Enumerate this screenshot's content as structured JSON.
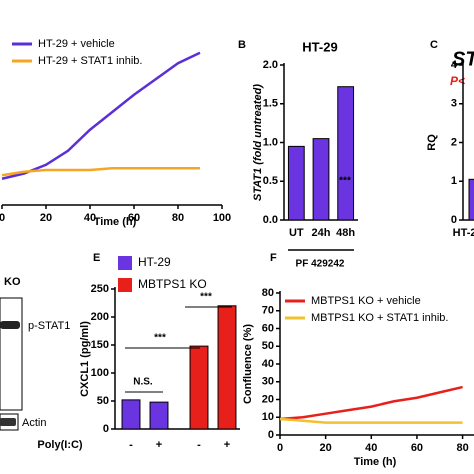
{
  "chart_data": [
    {
      "type": "line",
      "xlabel": "Time (h)",
      "x": [
        0,
        10,
        20,
        30,
        40,
        50,
        60,
        70,
        80,
        90
      ],
      "series": [
        {
          "name": "HT-29 + vehicle",
          "color": "#5b2fd6",
          "values": [
            15,
            18,
            23,
            31,
            43,
            53,
            63,
            72,
            81,
            87
          ]
        },
        {
          "name": "HT-29 + STAT1 inhib.",
          "color": "#f5a623",
          "values": [
            17,
            19,
            20,
            20,
            20,
            21,
            21,
            21,
            21,
            21
          ]
        }
      ],
      "xlim": [
        0,
        100
      ],
      "xticks": [
        0,
        20,
        40,
        60,
        80,
        100
      ],
      "ylim": [
        0,
        100
      ]
    },
    {
      "type": "bar",
      "panel": "B",
      "title": "HT-29",
      "ylabel": "STAT1 (fold untreated)",
      "group_label": "PF 429242",
      "categories": [
        "UT",
        "24h",
        "48h"
      ],
      "series": [
        {
          "name": "HT-29",
          "color": "#6a34e0",
          "values": [
            0.95,
            1.05,
            1.72
          ]
        }
      ],
      "annotations": [
        "***"
      ],
      "ylim": [
        0,
        2
      ],
      "yticks": [
        {
          "value": 0,
          "label": "0.0"
        },
        {
          "value": 0.5,
          "label": "0.5"
        },
        {
          "value": 1,
          "label": "1.0"
        },
        {
          "value": 1.5,
          "label": "1.5"
        },
        {
          "value": 2,
          "label": "2.0"
        }
      ]
    },
    {
      "type": "bar",
      "panel": "C",
      "title": "ST",
      "subtitle": "P<",
      "ylabel": "RQ",
      "categories": [
        "HT-2"
      ],
      "series": [
        {
          "name": "HT-29",
          "color": "#6a34e0",
          "values": [
            1.05
          ]
        }
      ],
      "ylim": [
        0,
        4
      ],
      "yticks": [
        0,
        1,
        2,
        3,
        4
      ]
    },
    {
      "type": "bar",
      "panel": "E",
      "ylabel": "CXCL1 (pg/ml)",
      "xlabel": "Poly(I:C)",
      "categories": [
        "-",
        "+",
        "-",
        "+"
      ],
      "series": [
        {
          "name": "HT-29",
          "color": "#6a34e0",
          "values": [
            52,
            48,
            null,
            null
          ]
        },
        {
          "name": "MBTPS1 KO",
          "color": "#e8201c",
          "values": [
            null,
            null,
            148,
            220
          ]
        }
      ],
      "annotations": [
        "N.S.",
        "***",
        "***"
      ],
      "ylim": [
        0,
        250
      ],
      "yticks": [
        0,
        50,
        100,
        150,
        200,
        250
      ],
      "legend": "top-left"
    },
    {
      "type": "line",
      "panel": "F",
      "xlabel": "Time (h)",
      "ylabel": "Confluence (%)",
      "x": [
        0,
        10,
        20,
        30,
        40,
        50,
        60,
        70,
        80
      ],
      "series": [
        {
          "name": "MBTPS1 KO + vehicle",
          "color": "#e8201c",
          "values": [
            9,
            10,
            12,
            14,
            16,
            19,
            21,
            24,
            27
          ]
        },
        {
          "name": "MBTPS1 KO + STAT1 inhib.",
          "color": "#f2c12e",
          "values": [
            9,
            8,
            7,
            7,
            7,
            7,
            7,
            7,
            7
          ]
        }
      ],
      "xlim": [
        0,
        85
      ],
      "xticks": [
        0,
        20,
        40,
        60,
        80
      ],
      "ylim": [
        0,
        80
      ],
      "yticks": [
        0,
        10,
        20,
        30,
        40,
        50,
        60,
        70,
        80
      ]
    }
  ],
  "blot": {
    "labels": [
      "KO",
      "p-STAT1",
      "Actin"
    ]
  }
}
